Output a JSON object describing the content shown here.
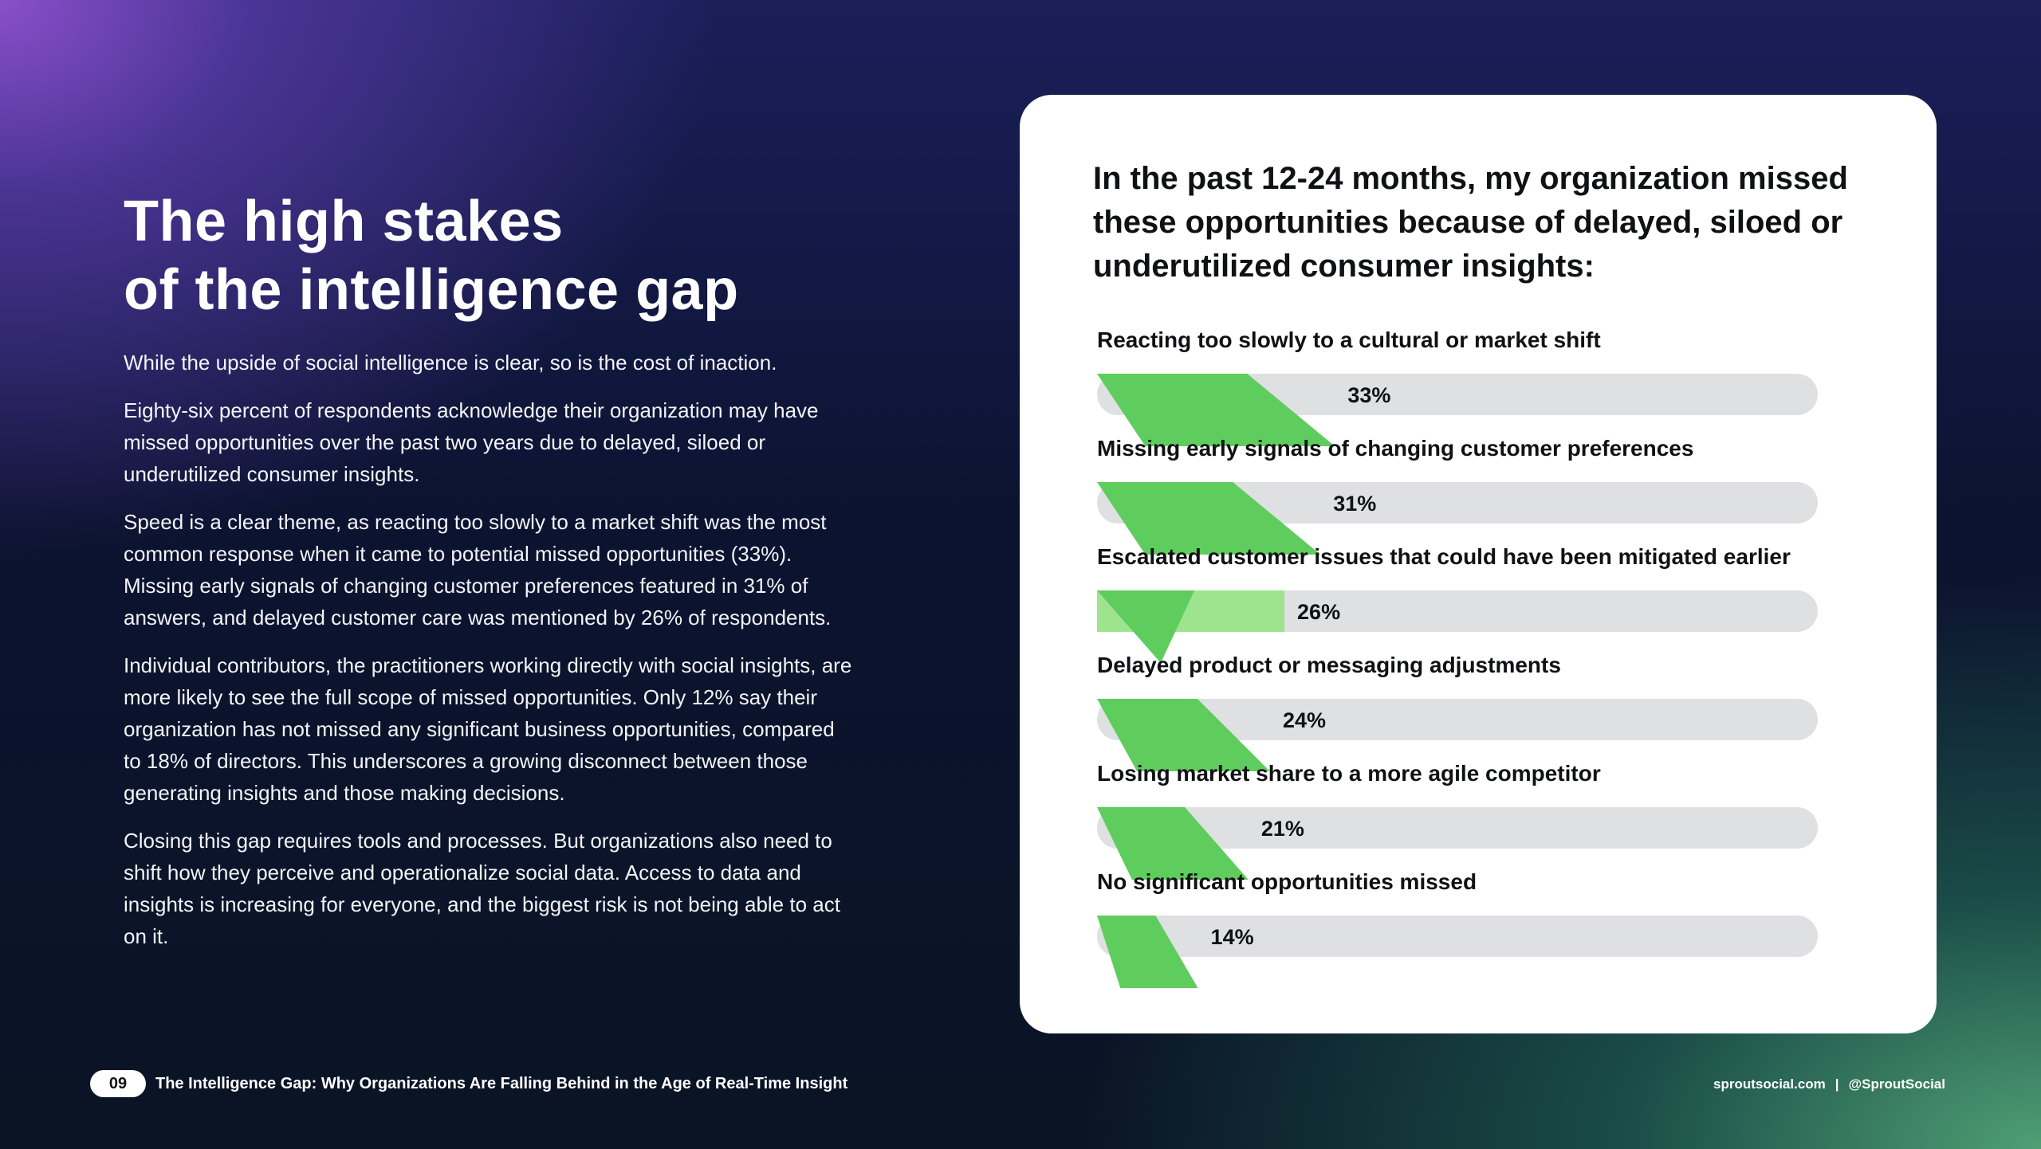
{
  "page": {
    "title_lines": [
      "The high stakes",
      "of the intelligence gap"
    ],
    "paragraphs": [
      "While the upside of social intelligence is clear, so is the cost of inaction.",
      "Eighty-six percent of respondents acknowledge their organization may have missed opportunities over the past two years due to delayed, siloed or underutilized consumer insights.",
      "Speed is a clear theme, as reacting too slowly to a market shift was the most common response when it came to potential missed opportunities (33%). Missing early signals of changing customer preferences featured in 31% of answers, and delayed customer care was mentioned by 26% of respondents.",
      "Individual contributors, the practitioners working directly with social insights, are more likely to see the full scope of missed opportunities. Only 12% say their organization has not missed any significant business opportunities, compared to 18% of directors. This underscores a growing disconnect between those generating insights and those making decisions.",
      "Closing this gap requires tools and processes. But organizations also need to shift how they perceive and operationalize social data. Access to data and insights is increasing for everyone, and the biggest risk is not being able to act on it."
    ]
  },
  "chart_data": {
    "type": "bar",
    "orientation": "horizontal",
    "title": "In the past 12-24 months, my organization missed these opportunities because of delayed, siloed or underutilized consumer insights:",
    "categories": [
      "Reacting too slowly to a cultural or market shift",
      "Missing early signals of changing customer preferences",
      "Escalated customer issues that could have been mitigated earlier",
      "Delayed product or messaging adjustments",
      "Losing market share to a more agile competitor",
      "No significant opportunities missed"
    ],
    "values": [
      33,
      31,
      26,
      24,
      21,
      14
    ],
    "value_labels": [
      "33%",
      "31%",
      "26%",
      "24%",
      "21%",
      "14%"
    ],
    "highlight_index": 2,
    "xlim": [
      0,
      100
    ],
    "colors": {
      "bar": "#5fcd5d",
      "bar_highlight": "#9ee48f",
      "track": "#dfe0e2",
      "text": "#101114"
    }
  },
  "footer": {
    "page_number": "09",
    "doc_title": "The Intelligence Gap: Why Organizations Are Falling Behind in the Age of Real-Time Insight",
    "website": "sproutsocial.com",
    "separator": "|",
    "handle": "@SproutSocial"
  }
}
